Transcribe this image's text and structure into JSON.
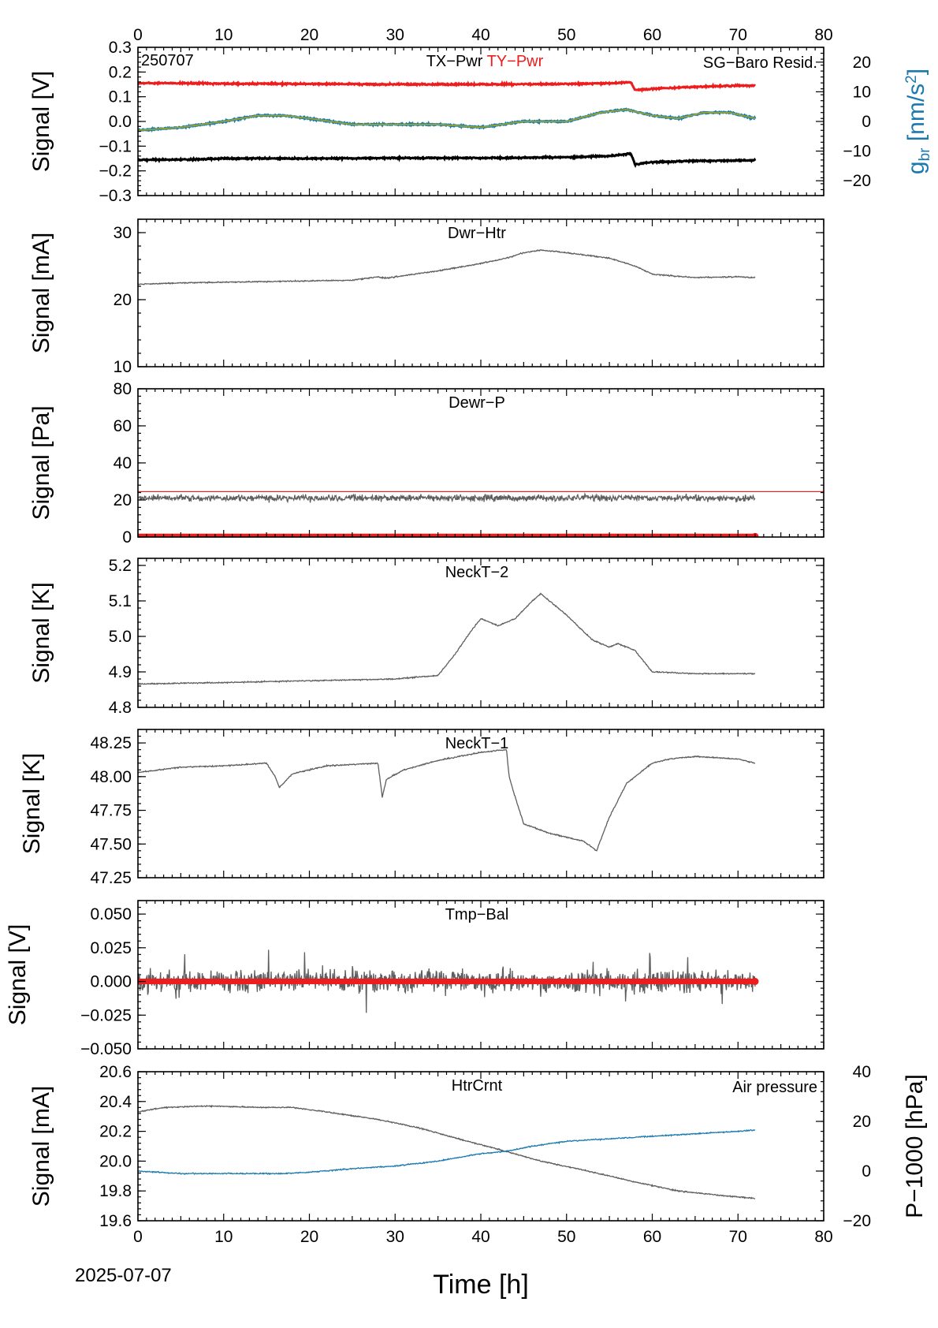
{
  "figure": {
    "date_label": "2025-07-07",
    "xlabel": "Time [h]"
  },
  "colors": {
    "red": "#ee1c1c",
    "blue": "#1a7ab0",
    "gray": "#5e5e5e",
    "black": "#000000",
    "olive": "#a3a81e"
  },
  "chart_data": [
    {
      "id": "p1",
      "type": "line",
      "title": "TX−Pwr",
      "title2": "TY−Pwr",
      "tag": "250707",
      "right_title": "SG−Baro Resid.",
      "ylabel": "Signal [V]",
      "ylabel_right_base": "g",
      "ylabel_right_sub": "br",
      "ylabel_right_unit": " [nm/s",
      "ylabel_right_sup": "2",
      "ylabel_right_close": "]",
      "xlim": [
        0,
        80
      ],
      "ylim": [
        -0.3,
        0.3
      ],
      "ylim_right": [
        -25,
        25
      ],
      "y_ticks": [
        -0.3,
        -0.2,
        -0.1,
        0.0,
        0.1,
        0.2,
        0.3
      ],
      "y_ticklabels": [
        "−0.3",
        "−0.2",
        "−0.1",
        "0.0",
        "0.1",
        "0.2",
        "0.3"
      ],
      "y_right_ticks": [
        -20,
        -10,
        0,
        10,
        20
      ],
      "y_right_ticklabels": [
        "−20",
        "−10",
        "0",
        "10",
        "20"
      ],
      "x_ticks_top": [
        0,
        10,
        20,
        30,
        40,
        50,
        60,
        70,
        80
      ],
      "x_ticklabels_top": [
        "0",
        "10",
        "20",
        "30",
        "40",
        "50",
        "60",
        "70",
        "80"
      ],
      "series": [
        {
          "name": "TY−Pwr",
          "axis": "left",
          "color": "red",
          "x": [
            0,
            5,
            10,
            20,
            30,
            40,
            50,
            55,
            57.5,
            58,
            58.5,
            60,
            65,
            70,
            72
          ],
          "y": [
            0.155,
            0.155,
            0.153,
            0.152,
            0.15,
            0.15,
            0.152,
            0.155,
            0.158,
            0.128,
            0.128,
            0.132,
            0.14,
            0.145,
            0.145
          ]
        },
        {
          "name": "TX−Pwr",
          "axis": "left",
          "color": "black",
          "x": [
            0,
            5,
            10,
            20,
            30,
            40,
            50,
            55,
            57.5,
            58,
            58.5,
            60,
            65,
            70,
            72
          ],
          "y": [
            -0.155,
            -0.155,
            -0.15,
            -0.15,
            -0.148,
            -0.148,
            -0.145,
            -0.14,
            -0.13,
            -0.175,
            -0.172,
            -0.165,
            -0.16,
            -0.158,
            -0.158
          ]
        },
        {
          "name": "SG−Baro Resid.",
          "axis": "right",
          "color": "blue",
          "x": [
            0,
            5,
            10,
            14,
            17,
            20,
            25,
            30,
            35,
            40,
            45,
            50,
            54,
            57,
            60,
            63,
            66,
            69,
            72
          ],
          "y": [
            -3,
            -2,
            0,
            2,
            2,
            1,
            -1,
            -1,
            -1,
            -2,
            0,
            0,
            3,
            4,
            2,
            1,
            3,
            3,
            1
          ]
        }
      ]
    },
    {
      "id": "p2",
      "type": "line",
      "title": "Dwr−Htr",
      "ylabel": "Signal [mA]",
      "xlim": [
        0,
        80
      ],
      "ylim": [
        10,
        32
      ],
      "y_ticks": [
        10,
        20,
        30
      ],
      "y_ticklabels": [
        "10",
        "20",
        "30"
      ],
      "series": [
        {
          "color": "gray",
          "x": [
            0,
            5,
            10,
            15,
            20,
            25,
            28,
            29,
            30,
            35,
            40,
            43,
            45,
            47,
            50,
            55,
            58,
            60,
            65,
            70,
            72
          ],
          "y": [
            22.3,
            22.5,
            22.6,
            22.7,
            22.8,
            22.9,
            23.4,
            23.2,
            23.4,
            24.3,
            25.4,
            26.2,
            27.0,
            27.4,
            27.0,
            26.2,
            25.0,
            23.8,
            23.3,
            23.4,
            23.3
          ]
        }
      ]
    },
    {
      "id": "p3",
      "type": "line",
      "title": "Dewr−P",
      "ylabel": "Signal [Pa]",
      "xlim": [
        0,
        80
      ],
      "ylim": [
        0,
        80
      ],
      "y_ticks": [
        0,
        20,
        40,
        60,
        80
      ],
      "y_ticklabels": [
        "0",
        "20",
        "40",
        "60",
        "80"
      ],
      "series": [
        {
          "name": "Dewr−P",
          "color": "gray",
          "x": [
            0,
            72
          ],
          "y": [
            21,
            21
          ]
        },
        {
          "name": "threshold",
          "color": "red",
          "x": [
            0,
            80
          ],
          "y": [
            24.5,
            24.5
          ]
        },
        {
          "name": "flag",
          "color": "red",
          "x": [
            0,
            72
          ],
          "y": [
            0.3,
            0.3
          ]
        }
      ]
    },
    {
      "id": "p4",
      "type": "line",
      "title": "NeckT−2",
      "ylabel": "Signal [K]",
      "xlim": [
        0,
        80
      ],
      "ylim": [
        4.8,
        5.22
      ],
      "y_ticks": [
        4.8,
        4.9,
        5.0,
        5.1,
        5.2
      ],
      "y_ticklabels": [
        "4.8",
        "4.9",
        "5.0",
        "5.1",
        "5.2"
      ],
      "series": [
        {
          "color": "gray",
          "x": [
            0,
            10,
            20,
            30,
            35,
            37,
            39,
            40,
            42,
            44,
            46,
            47,
            50,
            53,
            55,
            56,
            58,
            60,
            65,
            72
          ],
          "y": [
            4.866,
            4.87,
            4.875,
            4.88,
            4.89,
            4.95,
            5.02,
            5.05,
            5.03,
            5.05,
            5.1,
            5.12,
            5.06,
            4.99,
            4.97,
            4.98,
            4.96,
            4.9,
            4.895,
            4.895
          ]
        }
      ]
    },
    {
      "id": "p5",
      "type": "line",
      "title": "NeckT−1",
      "ylabel": "Signal [K]",
      "xlim": [
        0,
        80
      ],
      "ylim": [
        47.25,
        48.35
      ],
      "y_ticks": [
        47.25,
        47.5,
        47.75,
        48.0,
        48.25
      ],
      "y_ticklabels": [
        "47.25",
        "47.50",
        "47.75",
        "48.00",
        "48.25"
      ],
      "series": [
        {
          "color": "gray",
          "x": [
            0,
            5,
            10,
            15,
            16,
            16.5,
            18,
            22,
            28,
            28.5,
            29,
            31,
            35,
            40,
            43,
            43.3,
            44,
            45,
            48,
            52,
            53.5,
            55,
            57,
            60,
            62,
            65,
            70,
            72
          ],
          "y": [
            48.03,
            48.07,
            48.08,
            48.1,
            48.0,
            47.92,
            48.02,
            48.08,
            48.1,
            47.85,
            47.98,
            48.05,
            48.12,
            48.18,
            48.2,
            48.0,
            47.85,
            47.65,
            47.58,
            47.52,
            47.45,
            47.7,
            47.95,
            48.1,
            48.13,
            48.15,
            48.13,
            48.1
          ]
        }
      ]
    },
    {
      "id": "p6",
      "type": "line",
      "title": "Tmp−Bal",
      "ylabel": "Signal [V]",
      "xlim": [
        0,
        80
      ],
      "ylim": [
        -0.05,
        0.06
      ],
      "y_ticks": [
        -0.05,
        -0.025,
        0.0,
        0.025,
        0.05
      ],
      "y_ticklabels": [
        "−0.050",
        "−0.025",
        "0.000",
        "0.025",
        "0.050"
      ],
      "series": [
        {
          "name": "Tmp−Bal",
          "color": "gray",
          "x": [
            0,
            72
          ],
          "y": [
            0,
            0
          ],
          "noise_amplitude": 0.012
        },
        {
          "name": "flag",
          "color": "red",
          "x": [
            0,
            72
          ],
          "y": [
            0,
            0
          ]
        }
      ]
    },
    {
      "id": "p7",
      "type": "line",
      "title": "HtrCrnt",
      "right_title": "Air pressure",
      "ylabel": "Signal [mA]",
      "ylabel_right": "P−1000 [hPa]",
      "xlim": [
        0,
        80
      ],
      "ylim": [
        19.6,
        20.6
      ],
      "ylim_right": [
        -20,
        40
      ],
      "y_ticks": [
        19.6,
        19.8,
        20.0,
        20.2,
        20.4,
        20.6
      ],
      "y_ticklabels": [
        "19.6",
        "19.8",
        "20.0",
        "20.2",
        "20.4",
        "20.6"
      ],
      "y_right_ticks": [
        -20,
        0,
        20,
        40
      ],
      "y_right_ticklabels": [
        "−20",
        "0",
        "20",
        "40"
      ],
      "x_ticks": [
        0,
        10,
        20,
        30,
        40,
        50,
        60,
        70,
        80
      ],
      "x_ticklabels": [
        "0",
        "10",
        "20",
        "30",
        "40",
        "50",
        "60",
        "70",
        "80"
      ],
      "series": [
        {
          "name": "HtrCrnt",
          "axis": "left",
          "color": "gray",
          "x": [
            0,
            3,
            8,
            15,
            18,
            22,
            28,
            33,
            38,
            42,
            47,
            52,
            58,
            63,
            68,
            72
          ],
          "y": [
            20.33,
            20.36,
            20.37,
            20.36,
            20.36,
            20.33,
            20.28,
            20.22,
            20.14,
            20.08,
            20.0,
            19.94,
            19.86,
            19.8,
            19.77,
            19.75
          ]
        },
        {
          "name": "Air pressure",
          "axis": "right",
          "color": "blue",
          "x": [
            0,
            5,
            10,
            17,
            20,
            25,
            30,
            35,
            40,
            43,
            46,
            50,
            55,
            60,
            65,
            70,
            72
          ],
          "y": [
            0,
            -1,
            -1,
            -1,
            -0.5,
            1,
            2,
            4,
            7,
            8,
            10,
            12,
            13,
            14,
            15,
            16,
            16.5
          ]
        }
      ]
    }
  ]
}
